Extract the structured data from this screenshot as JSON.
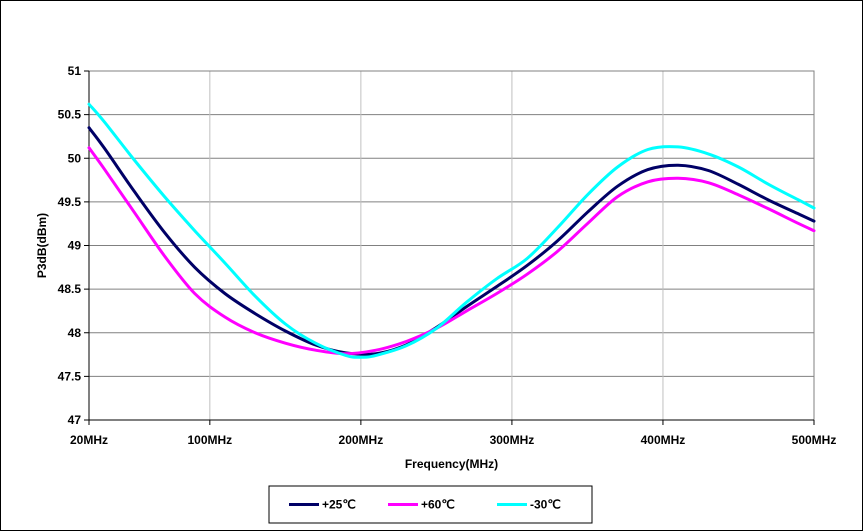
{
  "chart_data": {
    "type": "line",
    "title": "",
    "xlabel": "Frequency(MHz)",
    "ylabel": "P3dB(dBm)",
    "x_ticks": [
      "20MHz",
      "100MHz",
      "200MHz",
      "300MHz",
      "400MHz",
      "500MHz"
    ],
    "x_tick_values": [
      20,
      100,
      200,
      300,
      400,
      500
    ],
    "y_ticks": [
      "47",
      "47.5",
      "48",
      "48.5",
      "49",
      "49.5",
      "50",
      "50.5",
      "51"
    ],
    "xlim": [
      20,
      500
    ],
    "ylim": [
      47,
      51
    ],
    "grid": true,
    "legend_position": "bottom-center",
    "series": [
      {
        "name": "+25℃",
        "color": "#000066",
        "x": [
          20,
          30,
          50,
          70,
          90,
          110,
          130,
          150,
          170,
          190,
          210,
          230,
          250,
          270,
          290,
          310,
          330,
          350,
          370,
          390,
          410,
          430,
          450,
          470,
          490,
          500
        ],
        "y": [
          50.35,
          50.12,
          49.62,
          49.15,
          48.75,
          48.45,
          48.22,
          48.02,
          47.86,
          47.77,
          47.76,
          47.86,
          48.06,
          48.3,
          48.53,
          48.77,
          49.05,
          49.38,
          49.68,
          49.87,
          49.92,
          49.86,
          49.7,
          49.52,
          49.36,
          49.28
        ]
      },
      {
        "name": "+60℃",
        "color": "#ff00ff",
        "x": [
          20,
          30,
          50,
          70,
          90,
          110,
          130,
          150,
          170,
          190,
          210,
          230,
          250,
          270,
          290,
          310,
          330,
          350,
          370,
          390,
          410,
          430,
          450,
          470,
          490,
          500
        ],
        "y": [
          50.12,
          49.88,
          49.38,
          48.88,
          48.45,
          48.18,
          48.0,
          47.88,
          47.8,
          47.76,
          47.8,
          47.9,
          48.05,
          48.25,
          48.45,
          48.67,
          48.93,
          49.25,
          49.56,
          49.73,
          49.77,
          49.72,
          49.58,
          49.42,
          49.25,
          49.17
        ]
      },
      {
        "name": "-30℃",
        "color": "#00ffff",
        "x": [
          20,
          30,
          50,
          70,
          90,
          110,
          130,
          150,
          170,
          190,
          200,
          210,
          230,
          250,
          270,
          290,
          310,
          330,
          350,
          370,
          390,
          410,
          430,
          450,
          470,
          490,
          500
        ],
        "y": [
          50.62,
          50.42,
          49.98,
          49.56,
          49.17,
          48.8,
          48.42,
          48.1,
          47.88,
          47.74,
          47.72,
          47.74,
          47.85,
          48.05,
          48.35,
          48.62,
          48.85,
          49.2,
          49.58,
          49.9,
          50.1,
          50.13,
          50.05,
          49.9,
          49.7,
          49.52,
          49.43
        ]
      }
    ]
  }
}
